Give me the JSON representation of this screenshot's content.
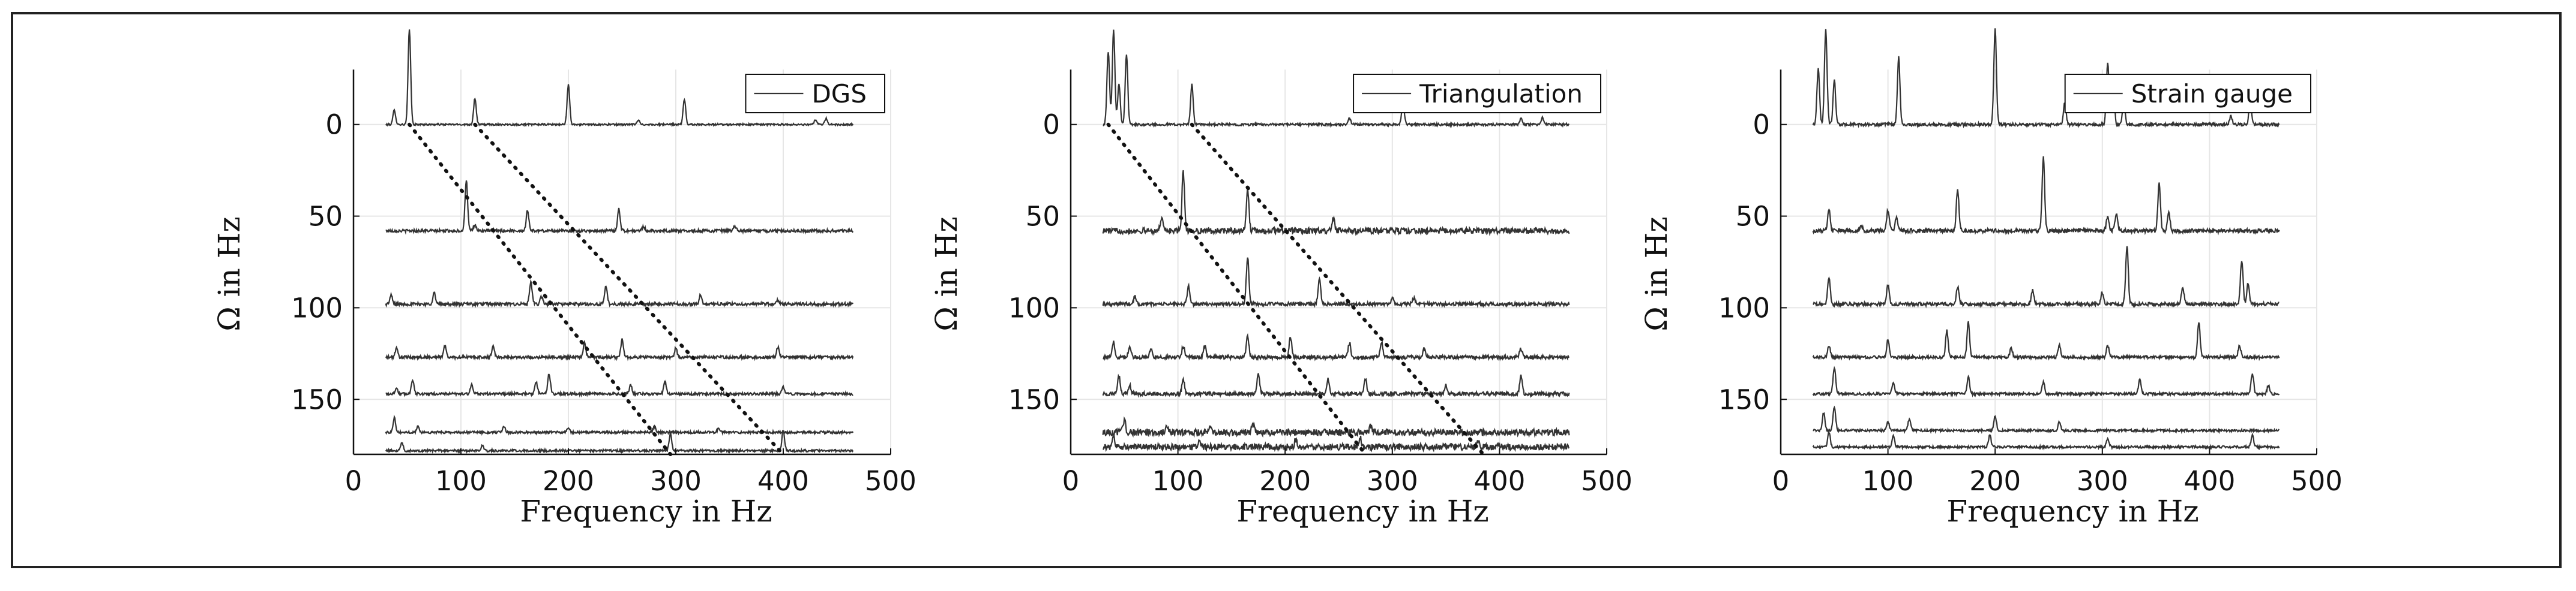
{
  "chart_data": [
    {
      "type": "line",
      "title": "",
      "legend": "DGS",
      "legend_position": "top-right",
      "xlabel": "Frequency in Hz",
      "ylabel": "Ω in Hz",
      "xlim": [
        0,
        500
      ],
      "ylim": [
        180,
        -30
      ],
      "xticks": [
        0,
        100,
        200,
        300,
        400,
        500
      ],
      "yticks": [
        0,
        50,
        100,
        150
      ],
      "grid": true,
      "x_range_of_series": [
        30,
        465
      ],
      "series": [
        {
          "omega": 0,
          "scale": 65,
          "noise": 0.6,
          "peaks": [
            [
              38,
              10
            ],
            [
              52,
              65
            ],
            [
              113,
              18
            ],
            [
              200,
              27
            ],
            [
              265,
              3
            ],
            [
              308,
              17
            ],
            [
              430,
              3
            ],
            [
              440,
              4
            ]
          ]
        },
        {
          "omega": 58,
          "scale": 23,
          "noise": 1.0,
          "peaks": [
            [
              105,
              35
            ],
            [
              113,
              4
            ],
            [
              162,
              14
            ],
            [
              247,
              15
            ],
            [
              270,
              3
            ],
            [
              355,
              3
            ]
          ]
        },
        {
          "omega": 98,
          "scale": 22,
          "noise": 1.1,
          "peaks": [
            [
              35,
              6
            ],
            [
              75,
              8
            ],
            [
              165,
              15
            ],
            [
              175,
              5
            ],
            [
              235,
              12
            ],
            [
              323,
              6
            ],
            [
              395,
              3
            ]
          ]
        },
        {
          "omega": 127,
          "scale": 14,
          "noise": 1.0,
          "peaks": [
            [
              40,
              6
            ],
            [
              85,
              8
            ],
            [
              130,
              8
            ],
            [
              215,
              10
            ],
            [
              250,
              12
            ],
            [
              300,
              6
            ],
            [
              395,
              7
            ]
          ]
        },
        {
          "omega": 147,
          "scale": 12,
          "noise": 0.9,
          "peaks": [
            [
              40,
              4
            ],
            [
              55,
              10
            ],
            [
              110,
              6
            ],
            [
              170,
              8
            ],
            [
              182,
              14
            ],
            [
              258,
              6
            ],
            [
              290,
              8
            ],
            [
              400,
              5
            ]
          ]
        },
        {
          "omega": 168,
          "scale": 10,
          "noise": 0.8,
          "peaks": [
            [
              38,
              10
            ],
            [
              60,
              4
            ],
            [
              140,
              4
            ],
            [
              200,
              3
            ],
            [
              280,
              4
            ],
            [
              340,
              3
            ]
          ]
        },
        {
          "omega": 178,
          "scale": 10,
          "noise": 0.8,
          "peaks": [
            [
              45,
              6
            ],
            [
              120,
              4
            ],
            [
              295,
              12
            ],
            [
              400,
              14
            ]
          ]
        }
      ],
      "dotted_lines": [
        [
          [
            52,
            0
          ],
          [
            295,
            180
          ]
        ],
        [
          [
            113,
            0
          ],
          [
            400,
            180
          ]
        ]
      ]
    },
    {
      "type": "line",
      "title": "",
      "legend": "Triangulation",
      "legend_position": "top-right",
      "xlabel": "Frequency in Hz",
      "ylabel": "Ω in Hz",
      "xlim": [
        0,
        500
      ],
      "ylim": [
        180,
        -30
      ],
      "xticks": [
        0,
        100,
        200,
        300,
        400,
        500
      ],
      "yticks": [
        0,
        50,
        100,
        150
      ],
      "grid": true,
      "x_range_of_series": [
        30,
        465
      ],
      "series": [
        {
          "omega": 0,
          "scale": 65,
          "noise": 0.8,
          "peaks": [
            [
              35,
              50
            ],
            [
              40,
              65
            ],
            [
              45,
              28
            ],
            [
              52,
              48
            ],
            [
              113,
              27
            ],
            [
              260,
              4
            ],
            [
              310,
              15
            ],
            [
              420,
              4
            ],
            [
              440,
              5
            ]
          ]
        },
        {
          "omega": 58,
          "scale": 26,
          "noise": 2.0,
          "peaks": [
            [
              85,
              10
            ],
            [
              105,
              40
            ],
            [
              165,
              28
            ],
            [
              245,
              8
            ]
          ]
        },
        {
          "omega": 98,
          "scale": 22,
          "noise": 1.2,
          "peaks": [
            [
              60,
              5
            ],
            [
              110,
              12
            ],
            [
              165,
              32
            ],
            [
              232,
              18
            ],
            [
              300,
              4
            ],
            [
              320,
              4
            ]
          ]
        },
        {
          "omega": 127,
          "scale": 16,
          "noise": 1.3,
          "peaks": [
            [
              40,
              10
            ],
            [
              55,
              8
            ],
            [
              75,
              6
            ],
            [
              105,
              8
            ],
            [
              125,
              8
            ],
            [
              165,
              14
            ],
            [
              205,
              14
            ],
            [
              260,
              10
            ],
            [
              290,
              10
            ],
            [
              330,
              6
            ],
            [
              420,
              6
            ]
          ]
        },
        {
          "omega": 147,
          "scale": 14,
          "noise": 1.3,
          "peaks": [
            [
              45,
              12
            ],
            [
              55,
              6
            ],
            [
              105,
              10
            ],
            [
              175,
              14
            ],
            [
              240,
              10
            ],
            [
              275,
              10
            ],
            [
              350,
              6
            ],
            [
              420,
              12
            ]
          ]
        },
        {
          "omega": 168,
          "scale": 12,
          "noise": 2.2,
          "peaks": [
            [
              50,
              8
            ],
            [
              90,
              4
            ],
            [
              130,
              5
            ],
            [
              170,
              6
            ],
            [
              280,
              4
            ]
          ]
        },
        {
          "omega": 176,
          "scale": 12,
          "noise": 2.2,
          "peaks": [
            [
              40,
              6
            ],
            [
              120,
              5
            ],
            [
              210,
              5
            ],
            [
              270,
              6
            ],
            [
              380,
              5
            ]
          ]
        }
      ],
      "dotted_lines": [
        [
          [
            35,
            0
          ],
          [
            275,
            180
          ]
        ],
        [
          [
            113,
            0
          ],
          [
            385,
            180
          ]
        ]
      ]
    },
    {
      "type": "line",
      "title": "",
      "legend": "Strain gauge",
      "legend_position": "top-right",
      "xlabel": "Frequency in Hz",
      "ylabel": "Ω in Hz",
      "xlim": [
        0,
        500
      ],
      "ylim": [
        180,
        -30
      ],
      "xticks": [
        0,
        100,
        200,
        300,
        400,
        500
      ],
      "yticks": [
        0,
        50,
        100,
        150
      ],
      "grid": true,
      "x_range_of_series": [
        30,
        465
      ],
      "series": [
        {
          "omega": 0,
          "scale": 65,
          "noise": 1.0,
          "peaks": [
            [
              35,
              38
            ],
            [
              42,
              65
            ],
            [
              50,
              30
            ],
            [
              110,
              46
            ],
            [
              200,
              65
            ],
            [
              265,
              15
            ],
            [
              305,
              42
            ],
            [
              310,
              30
            ],
            [
              320,
              15
            ],
            [
              420,
              6
            ],
            [
              438,
              16
            ]
          ]
        },
        {
          "omega": 58,
          "scale": 50,
          "noise": 1.4,
          "peaks": [
            [
              45,
              14
            ],
            [
              75,
              4
            ],
            [
              100,
              14
            ],
            [
              108,
              10
            ],
            [
              165,
              28
            ],
            [
              245,
              50
            ],
            [
              305,
              10
            ],
            [
              313,
              12
            ],
            [
              353,
              32
            ],
            [
              362,
              12
            ]
          ]
        },
        {
          "omega": 98,
          "scale": 38,
          "noise": 1.2,
          "peaks": [
            [
              45,
              18
            ],
            [
              100,
              13
            ],
            [
              165,
              12
            ],
            [
              235,
              10
            ],
            [
              300,
              8
            ],
            [
              323,
              40
            ],
            [
              375,
              12
            ],
            [
              430,
              30
            ],
            [
              436,
              14
            ]
          ]
        },
        {
          "omega": 127,
          "scale": 24,
          "noise": 1.0,
          "peaks": [
            [
              45,
              8
            ],
            [
              100,
              12
            ],
            [
              155,
              18
            ],
            [
              175,
              24
            ],
            [
              215,
              6
            ],
            [
              260,
              8
            ],
            [
              305,
              8
            ],
            [
              390,
              24
            ],
            [
              428,
              8
            ]
          ]
        },
        {
          "omega": 147,
          "scale": 16,
          "noise": 0.9,
          "peaks": [
            [
              50,
              18
            ],
            [
              105,
              8
            ],
            [
              175,
              12
            ],
            [
              245,
              8
            ],
            [
              335,
              10
            ],
            [
              440,
              14
            ],
            [
              455,
              6
            ]
          ]
        },
        {
          "omega": 167,
          "scale": 12,
          "noise": 0.8,
          "peaks": [
            [
              40,
              12
            ],
            [
              50,
              16
            ],
            [
              100,
              6
            ],
            [
              120,
              8
            ],
            [
              200,
              10
            ],
            [
              260,
              6
            ]
          ]
        },
        {
          "omega": 176,
          "scale": 10,
          "noise": 0.8,
          "peaks": [
            [
              45,
              10
            ],
            [
              105,
              8
            ],
            [
              195,
              8
            ],
            [
              305,
              6
            ],
            [
              440,
              8
            ]
          ]
        }
      ],
      "dotted_lines": []
    }
  ]
}
